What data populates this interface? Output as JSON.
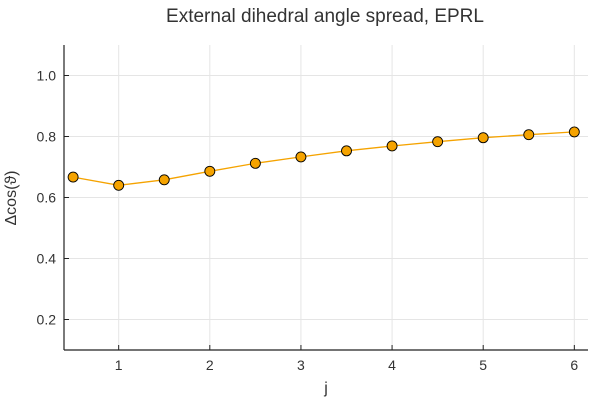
{
  "chart_data": {
    "type": "line",
    "title": "External dihedral angle spread, EPRL",
    "xlabel": "j",
    "ylabel": "Δcos(ϑ)",
    "xlim": [
      0.4,
      6.15
    ],
    "ylim": [
      0.1,
      1.1
    ],
    "x_ticks": [
      1,
      2,
      3,
      4,
      5,
      6
    ],
    "y_ticks": [
      0.2,
      0.4,
      0.6,
      0.8,
      1.0
    ],
    "x_tick_labels": [
      "1",
      "2",
      "3",
      "4",
      "5",
      "6"
    ],
    "y_tick_labels": [
      "0.2",
      "0.4",
      "0.6",
      "0.8",
      "1.0"
    ],
    "grid": true,
    "legend": "none",
    "series": [
      {
        "x": [
          0.5,
          1.0,
          1.5,
          2.0,
          2.5,
          3.0,
          3.5,
          4.0,
          4.5,
          5.0,
          5.5,
          6.0
        ],
        "values": [
          0.667,
          0.64,
          0.658,
          0.686,
          0.712,
          0.733,
          0.753,
          0.769,
          0.783,
          0.796,
          0.806,
          0.815
        ],
        "color": "#f5a300",
        "marker": "circle",
        "marker_edge": "#000000"
      }
    ]
  }
}
